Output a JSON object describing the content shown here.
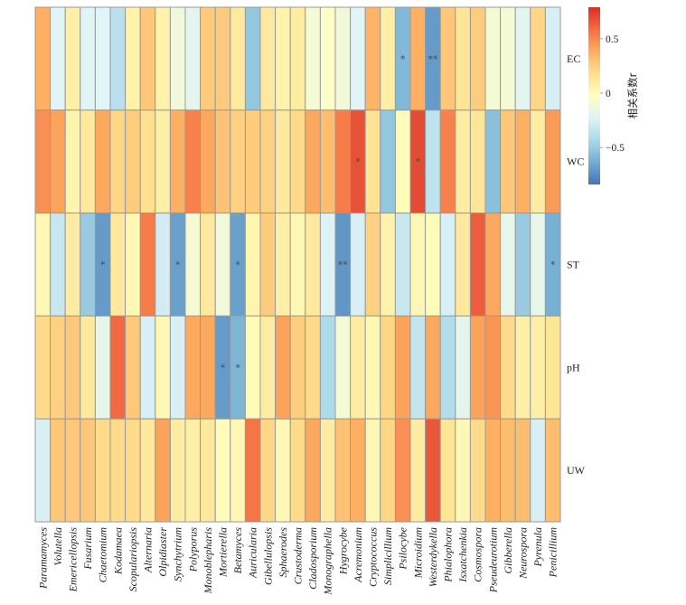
{
  "chart_data": {
    "type": "heatmap",
    "title": "",
    "xlabel": "",
    "ylabel": "",
    "rows": [
      "EC",
      "WC",
      "ST",
      "pH",
      "UW"
    ],
    "columns": [
      "Paramamyces",
      "Volutella",
      "Emericellopsis",
      "Fusarium",
      "Chaetomium",
      "Kodamaea",
      "Scopulariopsis",
      "Alternaria",
      "Olpidiaster",
      "Synchytrium",
      "Polyporus",
      "Monoblepharis",
      "Mortierella",
      "Betamyces",
      "Auricularia",
      "Gibellulopsis",
      "Sphaerodes",
      "Crustoderma",
      "Cladosporium",
      "Monographella",
      "Hygrocybe",
      "Acremonium",
      "Cryptococcus",
      "Simplicillium",
      "Psilocybe",
      "Microidium",
      "Westerdykella",
      "Phialophora",
      "Isxatchenkia",
      "Cosmospora",
      "Pseudeurotium",
      "Gibberella",
      "Neurospora",
      "Pyrenula",
      "Penicillium"
    ],
    "values": [
      [
        0.38,
        -0.22,
        0.08,
        -0.22,
        -0.22,
        -0.38,
        0.06,
        0.28,
        0.06,
        -0.12,
        -0.2,
        0.27,
        0.27,
        0.12,
        -0.52,
        0.12,
        0.06,
        0.1,
        -0.1,
        -0.05,
        -0.12,
        -0.22,
        0.36,
        0.08,
        -0.58,
        0.38,
        -0.7,
        0.28,
        0.14,
        0.26,
        -0.1,
        -0.1,
        -0.2,
        0.22,
        -0.26
      ],
      [
        0.48,
        0.42,
        0.05,
        0.12,
        0.4,
        0.22,
        0.26,
        0.18,
        0.08,
        0.38,
        0.52,
        0.4,
        0.3,
        0.24,
        0.26,
        0.24,
        0.12,
        0.2,
        0.4,
        0.32,
        0.54,
        0.68,
        0.16,
        -0.52,
        0.0,
        0.7,
        -0.36,
        0.52,
        0.1,
        0.14,
        -0.55,
        0.28,
        0.38,
        0.1,
        0.44
      ],
      [
        0.02,
        -0.32,
        0.1,
        -0.5,
        -0.7,
        0.12,
        0.02,
        0.54,
        -0.28,
        -0.68,
        -0.1,
        0.12,
        -0.12,
        -0.68,
        0.04,
        0.26,
        0.08,
        0.02,
        0.12,
        -0.24,
        -0.72,
        -0.26,
        0.24,
        0.06,
        -0.32,
        0.02,
        0.0,
        -0.26,
        0.12,
        0.64,
        0.4,
        -0.18,
        -0.5,
        -0.18,
        -0.62
      ],
      [
        0.2,
        0.24,
        0.28,
        0.12,
        -0.18,
        0.6,
        0.28,
        -0.26,
        0.02,
        -0.26,
        0.4,
        0.4,
        -0.7,
        -0.6,
        0.0,
        0.1,
        0.42,
        0.26,
        0.2,
        -0.42,
        -0.1,
        0.1,
        0.02,
        0.22,
        0.42,
        -0.34,
        0.4,
        -0.4,
        -0.2,
        0.42,
        0.46,
        0.2,
        0.08,
        0.08,
        0.14
      ],
      [
        -0.26,
        0.28,
        0.28,
        0.28,
        0.2,
        0.2,
        0.2,
        0.12,
        0.42,
        0.1,
        0.08,
        0.12,
        0.0,
        0.02,
        0.56,
        0.22,
        0.02,
        0.2,
        0.4,
        0.1,
        0.3,
        0.38,
        0.02,
        0.22,
        0.48,
        0.1,
        0.66,
        0.14,
        0.02,
        0.2,
        0.38,
        0.32,
        0.32,
        -0.26,
        0.32
      ]
    ],
    "significance": [
      [
        "",
        "",
        "",
        "",
        "",
        "",
        "",
        "",
        "",
        "",
        "",
        "",
        "",
        "",
        "",
        "",
        "",
        "",
        "",
        "",
        "",
        "",
        "",
        "",
        "*",
        "",
        "**",
        "",
        "",
        "",
        "",
        "",
        "",
        "",
        ""
      ],
      [
        "",
        "",
        "",
        "",
        "",
        "",
        "",
        "",
        "",
        "",
        "",
        "",
        "",
        "",
        "",
        "",
        "",
        "",
        "",
        "",
        "",
        "*",
        "",
        "",
        "",
        "*",
        "",
        "",
        "",
        "",
        "",
        "",
        "",
        "",
        ""
      ],
      [
        "",
        "",
        "",
        "",
        "*",
        "",
        "",
        "",
        "",
        "*",
        "",
        "",
        "",
        "*",
        "",
        "",
        "",
        "",
        "",
        "",
        "**",
        "",
        "",
        "",
        "",
        "",
        "",
        "",
        "",
        "",
        "",
        "",
        "",
        "",
        "*"
      ],
      [
        "",
        "",
        "",
        "",
        "",
        "",
        "",
        "",
        "",
        "",
        "",
        "",
        "*",
        "*",
        "",
        "",
        "",
        "",
        "",
        "",
        "",
        "",
        "",
        "",
        "",
        "",
        "",
        "",
        "",
        "",
        "",
        "",
        "",
        "",
        ""
      ],
      [
        "",
        "",
        "",
        "",
        "",
        "",
        "",
        "",
        "",
        "",
        "",
        "",
        "",
        "",
        "",
        "",
        "",
        "",
        "",
        "",
        "",
        "",
        "",
        "",
        "",
        "",
        "",
        "",
        "",
        "",
        "",
        "",
        "",
        "",
        ""
      ]
    ],
    "colorbar": {
      "title": "相关系数r",
      "ticks": [
        0.5,
        0,
        -0.5
      ],
      "tick_labels": [
        "0.5",
        "0",
        "−0.5"
      ],
      "range": [
        -0.84,
        0.79
      ],
      "colormap": "RdYlBu_r",
      "colors": [
        "#4575b4",
        "#74add1",
        "#abd9e9",
        "#e0f3f8",
        "#ffffbf",
        "#fee090",
        "#fdae61",
        "#f46d43",
        "#d73027"
      ]
    },
    "legend_position": "right",
    "grid": true,
    "cell_border_color": "#999999"
  }
}
